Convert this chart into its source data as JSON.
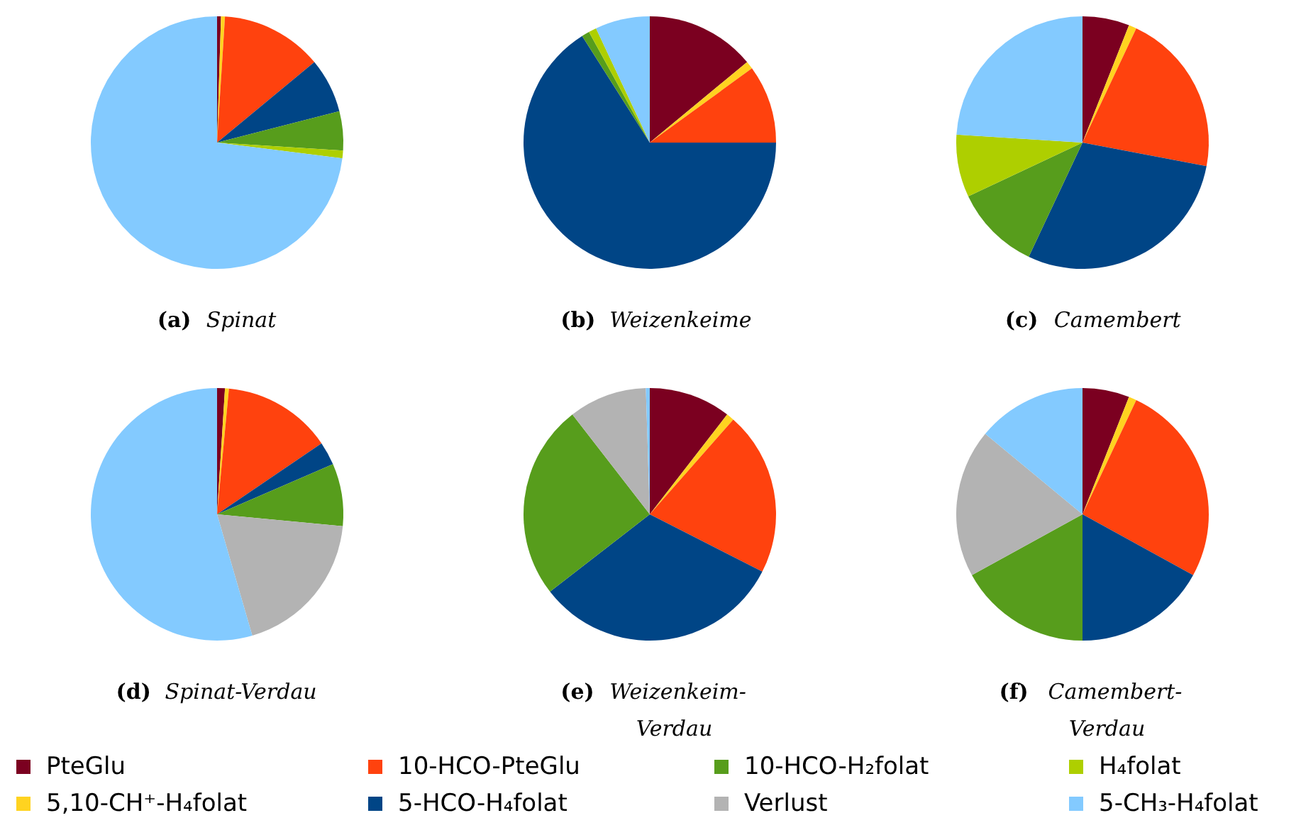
{
  "chart_data": [
    {
      "type": "pie",
      "title": "(a) Spinat",
      "legend": "bottom",
      "categories": [
        "PteGlu",
        "5,10-CH⁺-H₄folat",
        "10-HCO-PteGlu",
        "5-HCO-H₄folat",
        "10-HCO-H₂folat",
        "H₄folat",
        "Verlust",
        "5-CH₃-H₄folat"
      ],
      "colors": [
        "#7b0020",
        "#ffd320",
        "#ff420e",
        "#004586",
        "#579d1c",
        "#aecf00",
        "#b3b3b3",
        "#83caff"
      ],
      "values": [
        0.5,
        0.5,
        13,
        7,
        5,
        1,
        0,
        73
      ]
    },
    {
      "type": "pie",
      "title": "(b) Weizenkeime",
      "colors": [
        "#7b0020",
        "#ffd320",
        "#ff420e",
        "#004586",
        "#579d1c",
        "#aecf00",
        "#b3b3b3",
        "#83caff"
      ],
      "values": [
        14,
        1,
        10,
        66,
        1,
        1,
        0,
        7
      ]
    },
    {
      "type": "pie",
      "title": "(c) Camembert",
      "colors": [
        "#7b0020",
        "#ffd320",
        "#ff420e",
        "#004586",
        "#579d1c",
        "#aecf00",
        "#b3b3b3",
        "#83caff"
      ],
      "values": [
        6,
        1,
        21,
        29,
        11,
        8,
        0,
        24
      ]
    },
    {
      "type": "pie",
      "title": "(d) Spinat-Verdau",
      "colors": [
        "#7b0020",
        "#ffd320",
        "#ff420e",
        "#004586",
        "#579d1c",
        "#aecf00",
        "#b3b3b3",
        "#83caff"
      ],
      "values": [
        1,
        0.5,
        14,
        3,
        8,
        0,
        19,
        54.5
      ]
    },
    {
      "type": "pie",
      "title": "(e) Weizenkeim-Verdau",
      "colors": [
        "#7b0020",
        "#ffd320",
        "#ff420e",
        "#004586",
        "#579d1c",
        "#aecf00",
        "#b3b3b3",
        "#83caff"
      ],
      "values": [
        10.5,
        1,
        21,
        32,
        25,
        0,
        10,
        0.5
      ]
    },
    {
      "type": "pie",
      "title": "(f) Camembert-Verdau",
      "colors": [
        "#7b0020",
        "#ffd320",
        "#ff420e",
        "#004586",
        "#579d1c",
        "#aecf00",
        "#b3b3b3",
        "#83caff"
      ],
      "values": [
        6,
        1,
        26,
        17,
        17,
        0,
        19,
        14
      ]
    }
  ]
}
